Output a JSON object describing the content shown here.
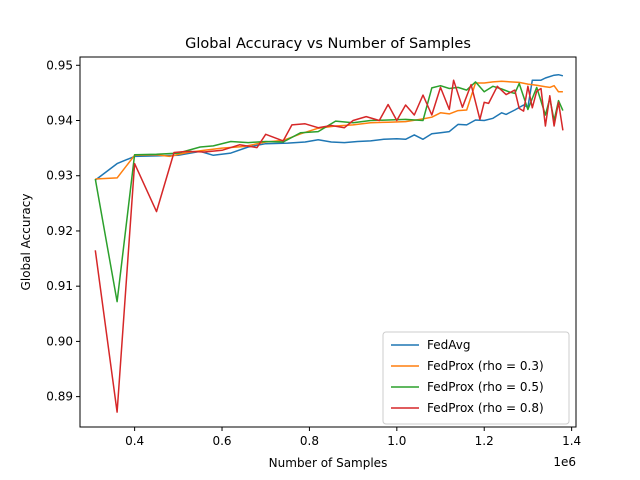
{
  "chart_data": {
    "type": "line",
    "title": "Global Accuracy vs Number of Samples",
    "xlabel": "Number of Samples",
    "ylabel": "Global Accuracy",
    "x_offset_label": "1e6",
    "xlim": [
      0.275,
      1.41
    ],
    "ylim": [
      0.8845,
      0.9515
    ],
    "xticks": [
      0.4,
      0.6,
      0.8,
      1.0,
      1.2,
      1.4
    ],
    "xtick_labels": [
      "0.4",
      "0.6",
      "0.8",
      "1.0",
      "1.2",
      "1.4"
    ],
    "yticks": [
      0.89,
      0.9,
      0.91,
      0.92,
      0.93,
      0.94,
      0.95
    ],
    "ytick_labels": [
      "0.89",
      "0.90",
      "0.91",
      "0.92",
      "0.93",
      "0.94",
      "0.95"
    ],
    "grid": false,
    "legend_position": "lower-right",
    "series": [
      {
        "name": "FedAvg",
        "color": "#1f77b4",
        "points": [
          [
            0.31,
            0.9292
          ],
          [
            0.36,
            0.9322
          ],
          [
            0.4,
            0.9335
          ],
          [
            0.45,
            0.9336
          ],
          [
            0.5,
            0.9337
          ],
          [
            0.55,
            0.9344
          ],
          [
            0.58,
            0.9337
          ],
          [
            0.62,
            0.9341
          ],
          [
            0.66,
            0.9352
          ],
          [
            0.7,
            0.9358
          ],
          [
            0.75,
            0.9359
          ],
          [
            0.79,
            0.9361
          ],
          [
            0.82,
            0.9365
          ],
          [
            0.85,
            0.9361
          ],
          [
            0.88,
            0.936
          ],
          [
            0.91,
            0.9362
          ],
          [
            0.94,
            0.9363
          ],
          [
            0.97,
            0.9366
          ],
          [
            1.0,
            0.9367
          ],
          [
            1.02,
            0.9366
          ],
          [
            1.04,
            0.9374
          ],
          [
            1.06,
            0.9366
          ],
          [
            1.08,
            0.9376
          ],
          [
            1.1,
            0.9378
          ],
          [
            1.12,
            0.938
          ],
          [
            1.14,
            0.9393
          ],
          [
            1.16,
            0.9392
          ],
          [
            1.18,
            0.9401
          ],
          [
            1.2,
            0.94
          ],
          [
            1.22,
            0.9404
          ],
          [
            1.24,
            0.9414
          ],
          [
            1.25,
            0.9411
          ],
          [
            1.27,
            0.9419
          ],
          [
            1.29,
            0.9428
          ],
          [
            1.3,
            0.9424
          ],
          [
            1.31,
            0.9473
          ],
          [
            1.33,
            0.9473
          ],
          [
            1.34,
            0.9477
          ],
          [
            1.36,
            0.9482
          ],
          [
            1.37,
            0.9483
          ],
          [
            1.38,
            0.9481
          ]
        ]
      },
      {
        "name": "FedProx (rho = 0.3)",
        "color": "#ff7f0e",
        "points": [
          [
            0.31,
            0.9294
          ],
          [
            0.36,
            0.9296
          ],
          [
            0.4,
            0.9337
          ],
          [
            0.45,
            0.9338
          ],
          [
            0.48,
            0.9335
          ],
          [
            0.52,
            0.9342
          ],
          [
            0.56,
            0.9346
          ],
          [
            0.6,
            0.935
          ],
          [
            0.65,
            0.9353
          ],
          [
            0.7,
            0.9361
          ],
          [
            0.74,
            0.9364
          ],
          [
            0.78,
            0.9376
          ],
          [
            0.82,
            0.9386
          ],
          [
            0.86,
            0.939
          ],
          [
            0.9,
            0.9392
          ],
          [
            0.94,
            0.9396
          ],
          [
            0.98,
            0.9397
          ],
          [
            1.02,
            0.9398
          ],
          [
            1.06,
            0.9403
          ],
          [
            1.08,
            0.9406
          ],
          [
            1.1,
            0.9414
          ],
          [
            1.12,
            0.9412
          ],
          [
            1.14,
            0.9418
          ],
          [
            1.16,
            0.9419
          ],
          [
            1.18,
            0.9468
          ],
          [
            1.2,
            0.9468
          ],
          [
            1.22,
            0.947
          ],
          [
            1.24,
            0.9471
          ],
          [
            1.26,
            0.947
          ],
          [
            1.28,
            0.9469
          ],
          [
            1.3,
            0.9466
          ],
          [
            1.32,
            0.9464
          ],
          [
            1.34,
            0.9461
          ],
          [
            1.35,
            0.946
          ],
          [
            1.36,
            0.9463
          ],
          [
            1.37,
            0.9452
          ],
          [
            1.38,
            0.9452
          ]
        ]
      },
      {
        "name": "FedProx (rho = 0.5)",
        "color": "#2ca02c",
        "points": [
          [
            0.31,
            0.9294
          ],
          [
            0.36,
            0.9072
          ],
          [
            0.4,
            0.9338
          ],
          [
            0.45,
            0.9339
          ],
          [
            0.5,
            0.9341
          ],
          [
            0.55,
            0.9352
          ],
          [
            0.58,
            0.9354
          ],
          [
            0.62,
            0.9362
          ],
          [
            0.66,
            0.936
          ],
          [
            0.7,
            0.9362
          ],
          [
            0.74,
            0.9361
          ],
          [
            0.78,
            0.9378
          ],
          [
            0.82,
            0.938
          ],
          [
            0.86,
            0.9399
          ],
          [
            0.9,
            0.9396
          ],
          [
            0.94,
            0.94
          ],
          [
            0.98,
            0.9401
          ],
          [
            1.02,
            0.9402
          ],
          [
            1.06,
            0.94
          ],
          [
            1.08,
            0.9459
          ],
          [
            1.1,
            0.9463
          ],
          [
            1.12,
            0.9458
          ],
          [
            1.14,
            0.946
          ],
          [
            1.16,
            0.9455
          ],
          [
            1.18,
            0.947
          ],
          [
            1.2,
            0.9452
          ],
          [
            1.22,
            0.9462
          ],
          [
            1.24,
            0.9457
          ],
          [
            1.26,
            0.9451
          ],
          [
            1.27,
            0.9449
          ],
          [
            1.28,
            0.9467
          ],
          [
            1.3,
            0.942
          ],
          [
            1.32,
            0.946
          ],
          [
            1.34,
            0.941
          ],
          [
            1.35,
            0.944
          ],
          [
            1.36,
            0.94
          ],
          [
            1.37,
            0.9436
          ],
          [
            1.38,
            0.9418
          ]
        ]
      },
      {
        "name": "FedProx (rho = 0.8)",
        "color": "#d62728",
        "points": [
          [
            0.31,
            0.9165
          ],
          [
            0.36,
            0.8872
          ],
          [
            0.4,
            0.9322
          ],
          [
            0.45,
            0.9235
          ],
          [
            0.49,
            0.9342
          ],
          [
            0.52,
            0.9344
          ],
          [
            0.56,
            0.9343
          ],
          [
            0.6,
            0.9346
          ],
          [
            0.64,
            0.9356
          ],
          [
            0.68,
            0.9351
          ],
          [
            0.7,
            0.9375
          ],
          [
            0.74,
            0.9363
          ],
          [
            0.76,
            0.9392
          ],
          [
            0.79,
            0.9394
          ],
          [
            0.82,
            0.9387
          ],
          [
            0.85,
            0.9391
          ],
          [
            0.88,
            0.9387
          ],
          [
            0.9,
            0.94
          ],
          [
            0.93,
            0.9407
          ],
          [
            0.96,
            0.94
          ],
          [
            0.98,
            0.9429
          ],
          [
            1.0,
            0.94
          ],
          [
            1.02,
            0.9428
          ],
          [
            1.04,
            0.941
          ],
          [
            1.06,
            0.9446
          ],
          [
            1.08,
            0.941
          ],
          [
            1.1,
            0.946
          ],
          [
            1.12,
            0.942
          ],
          [
            1.13,
            0.9473
          ],
          [
            1.15,
            0.9424
          ],
          [
            1.17,
            0.9465
          ],
          [
            1.19,
            0.9402
          ],
          [
            1.2,
            0.9433
          ],
          [
            1.21,
            0.9431
          ],
          [
            1.23,
            0.9462
          ],
          [
            1.25,
            0.9447
          ],
          [
            1.27,
            0.9455
          ],
          [
            1.28,
            0.9422
          ],
          [
            1.29,
            0.9417
          ],
          [
            1.3,
            0.9462
          ],
          [
            1.31,
            0.9423
          ],
          [
            1.32,
            0.9453
          ],
          [
            1.33,
            0.9458
          ],
          [
            1.34,
            0.939
          ],
          [
            1.35,
            0.9445
          ],
          [
            1.36,
            0.939
          ],
          [
            1.37,
            0.9433
          ],
          [
            1.38,
            0.9382
          ]
        ]
      }
    ]
  }
}
